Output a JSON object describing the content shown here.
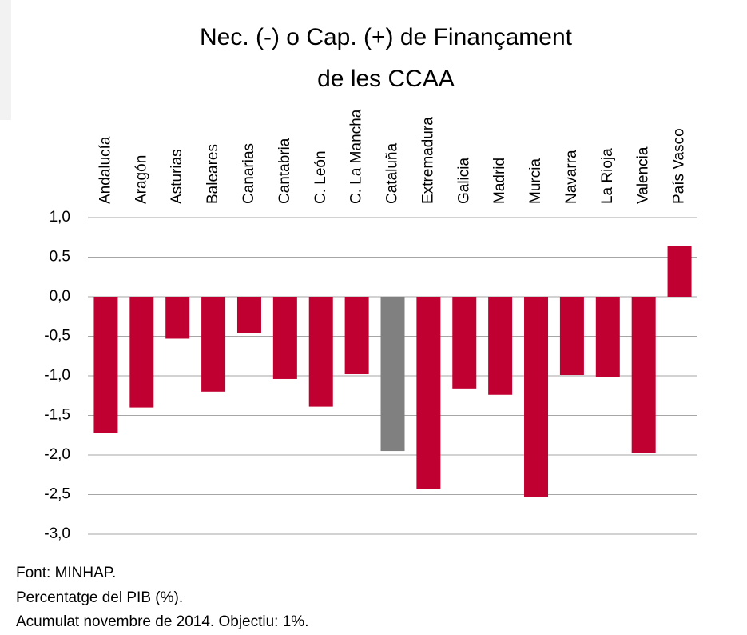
{
  "chart_data": {
    "type": "bar",
    "title": [
      "Nec. (-) o Cap. (+) de Finançament",
      "de les CCAA"
    ],
    "categories": [
      "Andalucía",
      "Aragón",
      "Asturias",
      "Baleares",
      "Canarias",
      "Cantabria",
      "C. León",
      "C. La Mancha",
      "Cataluña",
      "Extremadura",
      "Galicia",
      "Madrid",
      "Murcia",
      "Navarra",
      "La Rioja",
      "Valencia",
      "País Vasco"
    ],
    "values": [
      -1.72,
      -1.4,
      -0.53,
      -1.2,
      -0.46,
      -1.04,
      -1.39,
      -0.98,
      -1.95,
      -2.43,
      -1.16,
      -1.24,
      -2.53,
      -0.99,
      -1.02,
      -1.97,
      0.64
    ],
    "colors": [
      "#c00030",
      "#c00030",
      "#c00030",
      "#c00030",
      "#c00030",
      "#c00030",
      "#c00030",
      "#c00030",
      "#808080",
      "#c00030",
      "#c00030",
      "#c00030",
      "#c00030",
      "#c00030",
      "#c00030",
      "#c00030",
      "#c00030"
    ],
    "ylim": [
      -3,
      1
    ],
    "yticks": [
      {
        "value": 1,
        "label": "1,0"
      },
      0.5,
      {
        "value": 0,
        "label": "0,0"
      },
      {
        "value": -0.5,
        "label": "-0,5"
      },
      {
        "value": -1,
        "label": "-1,0"
      },
      {
        "value": -1.5,
        "label": "-1,5"
      },
      {
        "value": -2,
        "label": "-2,0"
      },
      {
        "value": -2.5,
        "label": "-2,5"
      },
      {
        "value": -3,
        "label": "-3,0"
      }
    ],
    "grid": true,
    "notes": [
      "Font: MINHAP.",
      "Percentatge del PIB (%).",
      "Acumulat novembre de 2014. Objectiu: 1%."
    ]
  }
}
